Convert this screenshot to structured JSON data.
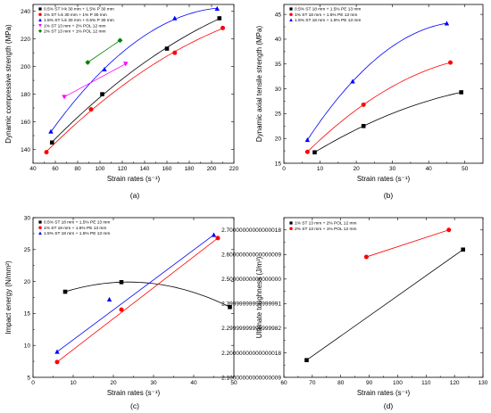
{
  "chart_data": [
    {
      "type": "scatter",
      "panel_label": "(a)",
      "xlabel": "Strain rates (s⁻¹)",
      "ylabel": "Dynamic compressive strength (MPa)",
      "xlim": [
        40,
        220
      ],
      "ylim": [
        130,
        245
      ],
      "xticks": [
        40,
        60,
        80,
        100,
        120,
        140,
        160,
        180,
        200,
        220
      ],
      "yticks": [
        140,
        160,
        180,
        200,
        220,
        240
      ],
      "legend_position": "top-left",
      "series": [
        {
          "name": "0.5% ST l=k 30 mm + 1.5% P 30 mm",
          "color": "#000000",
          "marker": "square",
          "x": [
            57,
            102,
            160,
            207
          ],
          "y": [
            145,
            180,
            213,
            235
          ],
          "fit": "curve"
        },
        {
          "name": "1% ST l=k 30 mm + 1% P 30 mm",
          "color": "#ff0000",
          "marker": "circle",
          "x": [
            52,
            92,
            167,
            210
          ],
          "y": [
            138,
            169,
            210,
            228
          ],
          "fit": "curve"
        },
        {
          "name": "1.5% ST l=k 30 mm + 0.5% P 30 mm",
          "color": "#0000ff",
          "marker": "triangle",
          "x": [
            56,
            104,
            167,
            205
          ],
          "y": [
            153,
            198,
            235,
            242
          ],
          "fit": "curve"
        },
        {
          "name": "1% ST 13 mm + 2% POL 12 mm",
          "color": "#ff00ff",
          "marker": "triangle-down",
          "x": [
            68,
            123
          ],
          "y": [
            178,
            202
          ],
          "fit": "line"
        },
        {
          "name": "2% ST 13 mm + 1% POL 12 mm",
          "color": "#008000",
          "marker": "diamond",
          "x": [
            89,
            118
          ],
          "y": [
            203,
            219
          ],
          "fit": "line"
        }
      ]
    },
    {
      "type": "scatter",
      "panel_label": "(b)",
      "xlabel": "Strain rates (s⁻¹)",
      "ylabel": "Dynamic axial tensile strength (MPa)",
      "xlim": [
        0,
        55
      ],
      "ylim": [
        15,
        47
      ],
      "xticks": [
        0,
        10,
        20,
        30,
        40,
        50
      ],
      "yticks": [
        15,
        20,
        25,
        30,
        35,
        40,
        45
      ],
      "legend_position": "top-left",
      "series": [
        {
          "name": "0.5% ST 18 mm + 1.5% PE 13 mm",
          "color": "#000000",
          "marker": "square",
          "x": [
            8.5,
            22,
            49
          ],
          "y": [
            17.2,
            22.5,
            29.3
          ],
          "fit": "curve"
        },
        {
          "name": "1% ST 18 mm + 1.5% PE 13 mm",
          "color": "#ff0000",
          "marker": "circle",
          "x": [
            6.5,
            22,
            46
          ],
          "y": [
            17.3,
            26.8,
            35.3
          ],
          "fit": "curve"
        },
        {
          "name": "1.5% ST 18 mm + 1.5% PE 13 mm",
          "color": "#0000ff",
          "marker": "triangle",
          "x": [
            6.5,
            19,
            45
          ],
          "y": [
            19.7,
            31.5,
            43.2
          ],
          "fit": "curve"
        }
      ]
    },
    {
      "type": "scatter",
      "panel_label": "(c)",
      "xlabel": "Strain rates (s⁻¹)",
      "ylabel": "Impact energy (N/mm²)",
      "xlim": [
        0,
        50
      ],
      "ylim": [
        5,
        30
      ],
      "xticks": [
        0,
        10,
        20,
        30,
        40,
        50
      ],
      "yticks": [
        5,
        10,
        15,
        20,
        25,
        30
      ],
      "legend_position": "top-left",
      "series": [
        {
          "name": "0.5% ST 18 mm + 1.5% PE 13 mm",
          "color": "#000000",
          "marker": "square",
          "x": [
            8,
            22,
            49
          ],
          "y": [
            18.4,
            19.9,
            16.0
          ],
          "fit": "curve"
        },
        {
          "name": "1% ST 18 mm + 1.5% PE 13 mm",
          "color": "#ff0000",
          "marker": "circle",
          "x": [
            6,
            22,
            46
          ],
          "y": [
            7.4,
            15.6,
            26.8
          ],
          "fit": "line"
        },
        {
          "name": "1.5% ST 18 mm + 1.5% PE 13 mm",
          "color": "#0000ff",
          "marker": "triangle",
          "x": [
            6,
            19,
            45
          ],
          "y": [
            9.0,
            17.2,
            27.3
          ],
          "fit": "line"
        }
      ]
    },
    {
      "type": "scatter",
      "panel_label": "(d)",
      "xlabel": "Strain rates (s⁻¹)",
      "ylabel": "Ultimate toughness (J/m³)",
      "xlim": [
        60,
        130
      ],
      "ylim": [
        2.1,
        2.75
      ],
      "xticks": [
        60,
        70,
        80,
        90,
        100,
        110,
        120,
        130
      ],
      "yticks": [
        2.1,
        2.2,
        2.3,
        2.4,
        2.5,
        2.6,
        2.7
      ],
      "legend_position": "top-left",
      "series": [
        {
          "name": "1% ST 13 mm + 2% POL 12 mm",
          "color": "#000000",
          "marker": "square",
          "x": [
            68,
            123
          ],
          "y": [
            2.17,
            2.62
          ],
          "fit": "line"
        },
        {
          "name": "2% ST 13 mm + 1% POL 12 mm",
          "color": "#ff0000",
          "marker": "circle",
          "x": [
            89,
            118
          ],
          "y": [
            2.59,
            2.7
          ],
          "fit": "line"
        }
      ]
    }
  ]
}
